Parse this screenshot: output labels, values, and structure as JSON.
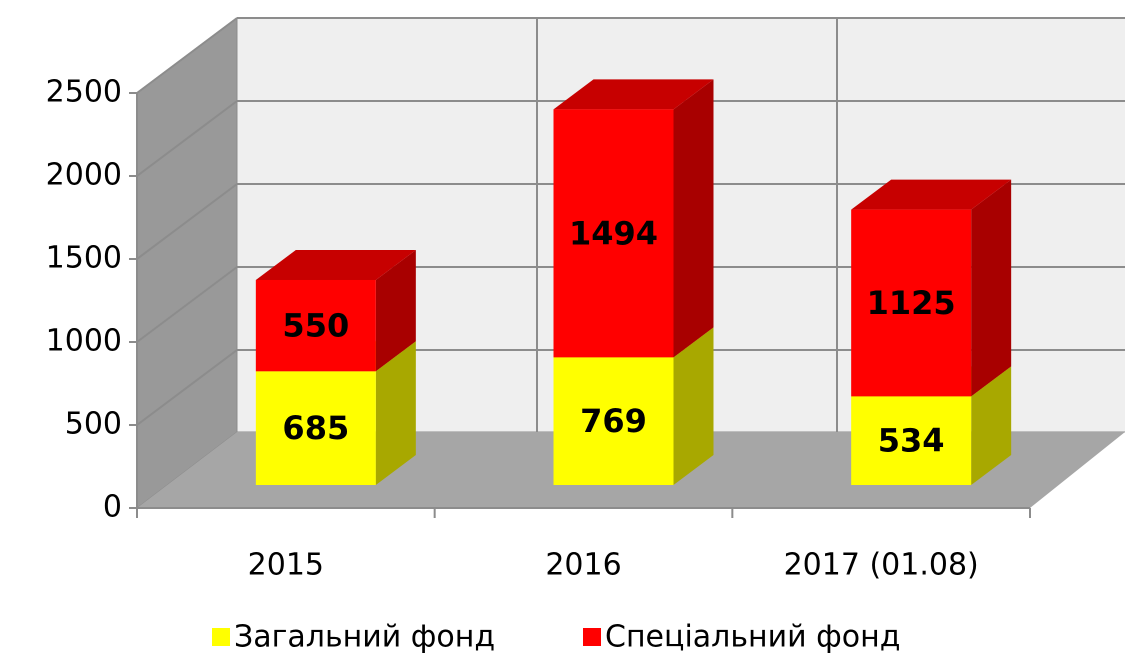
{
  "chart_data": {
    "type": "bar3d_stacked",
    "categories": [
      "2015",
      "2016",
      "2017 (01.08)"
    ],
    "series": [
      {
        "name": "Загальний фонд",
        "color": "#ffff00",
        "values": [
          685,
          769,
          534
        ]
      },
      {
        "name": "Спеціальний фонд",
        "color": "#ff0000",
        "values": [
          550,
          1494,
          1125
        ]
      }
    ],
    "ylim": [
      0,
      2500
    ],
    "yticks": [
      0,
      500,
      1000,
      1500,
      2000,
      2500
    ],
    "grid": true,
    "legend": "bottom"
  }
}
